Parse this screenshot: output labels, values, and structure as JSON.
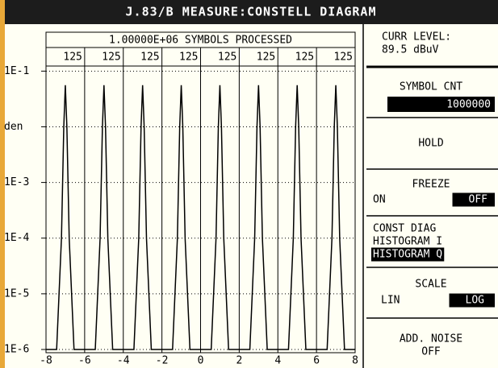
{
  "title": "J.83/B MEASURE:CONSTELL DIAGRAM",
  "chart_data": {
    "type": "line",
    "header": "1.00000E+06 SYMBOLS PROCESSED",
    "column_labels": [
      "125",
      "125",
      "125",
      "125",
      "125",
      "125",
      "125",
      "125"
    ],
    "x": [
      -8,
      -7.45,
      -7.2,
      -7.08,
      -7,
      -6.92,
      -6.8,
      -6.55,
      -5.45,
      -5.2,
      -5.08,
      -5,
      -4.92,
      -4.8,
      -4.55,
      -3.45,
      -3.2,
      -3.08,
      -3,
      -2.92,
      -2.8,
      -2.55,
      -1.45,
      -1.2,
      -1.08,
      -1,
      -0.92,
      -0.8,
      -0.55,
      0.55,
      0.8,
      0.92,
      1,
      1.08,
      1.2,
      1.45,
      2.55,
      2.8,
      2.92,
      3,
      3.08,
      3.2,
      3.45,
      4.55,
      4.8,
      4.92,
      5,
      5.08,
      5.2,
      5.45,
      6.55,
      6.8,
      6.92,
      7,
      7.08,
      7.2,
      7.45,
      8
    ],
    "series": [
      {
        "color": "#000000",
        "values": [
          1e-06,
          1e-06,
          0.0001,
          0.01,
          0.056,
          0.01,
          0.0001,
          1e-06,
          1e-06,
          0.0001,
          0.01,
          0.056,
          0.01,
          0.0001,
          1e-06,
          1e-06,
          0.0001,
          0.01,
          0.056,
          0.01,
          0.0001,
          1e-06,
          1e-06,
          0.0001,
          0.01,
          0.056,
          0.01,
          0.0001,
          1e-06,
          1e-06,
          0.0001,
          0.01,
          0.056,
          0.01,
          0.0001,
          1e-06,
          1e-06,
          0.0001,
          0.01,
          0.056,
          0.01,
          0.0001,
          1e-06,
          1e-06,
          0.0001,
          0.01,
          0.056,
          0.01,
          0.0001,
          1e-06,
          1e-06,
          0.0001,
          0.01,
          0.056,
          0.01,
          0.0001,
          1e-06,
          1e-06
        ]
      }
    ],
    "xlim": [
      -8,
      8
    ],
    "xticks": [
      -8,
      -6,
      -4,
      -2,
      0,
      2,
      4,
      6,
      8
    ],
    "ylim": [
      1e-06,
      0.5
    ],
    "log_scale": true,
    "grid": true,
    "yticks": [
      {
        "value": 0.1,
        "label": "1E-1"
      },
      {
        "value": 0.01,
        "label": "den"
      },
      {
        "value": 0.001,
        "label": "1E-3"
      },
      {
        "value": 0.0001,
        "label": "1E-4"
      },
      {
        "value": 1e-05,
        "label": "1E-5"
      },
      {
        "value": 1e-06,
        "label": "1E-6"
      }
    ]
  },
  "panel": {
    "level_label": "CURR LEVEL:",
    "level_value": "89.5 dBuV",
    "softkeys": [
      {
        "label": "SYMBOL CNT",
        "value": "1000000"
      },
      {
        "label": "HOLD"
      },
      {
        "label": "FREEZE",
        "options": [
          "ON",
          "OFF"
        ],
        "selected": 1
      },
      {
        "options": [
          "CONST DIAG",
          "HISTOGRAM I",
          "HISTOGRAM Q"
        ],
        "selected": 2
      },
      {
        "label": "SCALE",
        "options": [
          "LIN",
          "LOG"
        ],
        "selected": 1
      },
      {
        "label": "ADD. NOISE",
        "value": "OFF"
      }
    ]
  }
}
